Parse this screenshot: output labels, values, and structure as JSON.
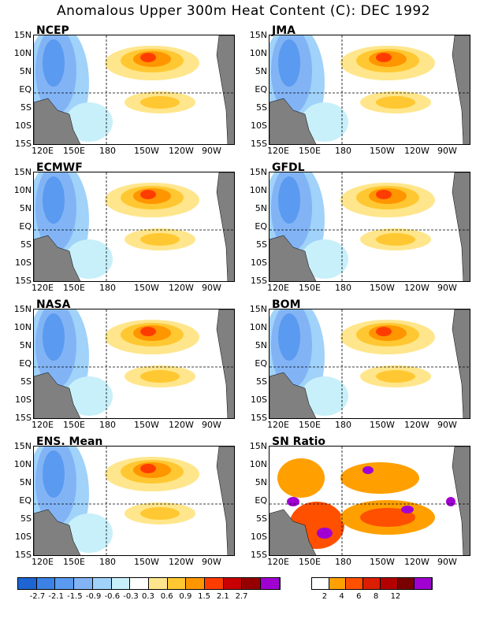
{
  "title": "Anomalous Upper 300m Heat Content (C): DEC 1992",
  "lat_labels": [
    "15N",
    "10N",
    "5N",
    "EQ",
    "5S",
    "10S",
    "15S"
  ],
  "lon_labels": [
    "120E",
    "150E",
    "180",
    "150W",
    "120W",
    "90W"
  ],
  "panels": [
    {
      "name": "NCEP"
    },
    {
      "name": "JMA"
    },
    {
      "name": "ECMWF"
    },
    {
      "name": "GFDL"
    },
    {
      "name": "NASA"
    },
    {
      "name": "BOM"
    },
    {
      "name": "ENS. Mean"
    },
    {
      "name": "SN Ratio"
    }
  ],
  "anomaly_scale": {
    "labels": [
      "-2.7",
      "-2.1",
      "-1.5",
      "-0.9",
      "-0.6",
      "-0.3",
      "0.3",
      "0.6",
      "0.9",
      "1.5",
      "2.1",
      "2.7"
    ],
    "colors": [
      "#1e64d2",
      "#3c82e6",
      "#5a9af0",
      "#82b4f5",
      "#a0d2fa",
      "#c8f0fa",
      "#ffffff",
      "#ffe68c",
      "#ffc832",
      "#ff9600",
      "#ff3c00",
      "#c80000",
      "#960000",
      "#a000d2"
    ]
  },
  "ratio_scale": {
    "labels": [
      "2",
      "4",
      "6",
      "8",
      "12"
    ],
    "colors": [
      "#ffffff",
      "#ffa000",
      "#ff5000",
      "#dc1e00",
      "#b40000",
      "#7a0000",
      "#a000d2"
    ]
  }
}
